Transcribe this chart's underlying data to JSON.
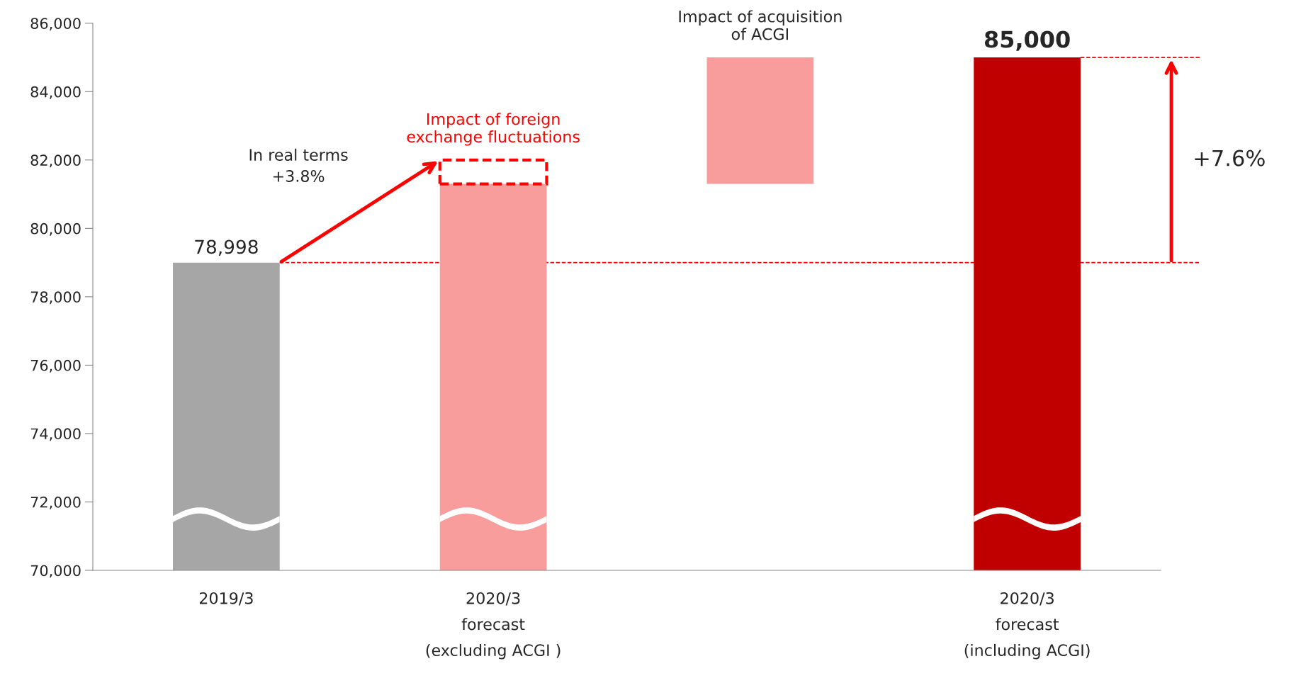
{
  "chart_data": {
    "type": "bar",
    "categories": [
      "2019/3",
      "2020/3\nforecast\n(excluding ACGI )",
      null,
      "2020/3\nforecast\n(including ACGI)"
    ],
    "series": [
      {
        "type": "bar",
        "values": [
          8998,
          11300,
          3700,
          15000
        ],
        "base": [
          70000,
          70000,
          81300,
          70000
        ],
        "colors": [
          "#a6a6a6",
          "#f89c9c",
          "#f89c9c",
          "#c00000"
        ],
        "value_labels": [
          "78,998",
          null,
          null,
          "85,000"
        ]
      },
      {
        "type": "bar",
        "values": [
          null,
          700,
          null,
          null
        ],
        "base": [
          null,
          81300,
          null,
          null
        ],
        "color": "#ff0000",
        "line_style": "dashed"
      }
    ],
    "ylim": [
      70000,
      86000
    ],
    "yticks": [
      {
        "value": 70000,
        "label": "70,000"
      },
      {
        "value": 72000,
        "label": "72,000"
      },
      {
        "value": 74000,
        "label": "74,000"
      },
      {
        "value": 76000,
        "label": "76,000"
      },
      {
        "value": 78000,
        "label": "78,000"
      },
      {
        "value": 80000,
        "label": "80,000"
      },
      {
        "value": 82000,
        "label": "82,000"
      },
      {
        "value": 84000,
        "label": "84,000"
      },
      {
        "value": 86000,
        "label": "86,000"
      }
    ],
    "ref_lines": [
      {
        "axis": "y",
        "value": 78998,
        "color": "#ff0000",
        "line_style": "dashed"
      },
      {
        "axis": "y",
        "value": 85000,
        "color": "#ff0000",
        "line_style": "dashed"
      }
    ],
    "annotations": [
      "In real terms\n+3.8%",
      {
        "text": "Impact of foreign\nexchange fluctuations",
        "y": 82000
      },
      "Impact of acquisition\nof ACGI",
      "+7.6%"
    ],
    "grid": false,
    "legend": false
  }
}
